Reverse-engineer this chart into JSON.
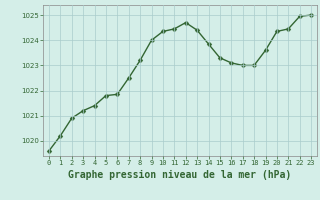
{
  "x": [
    0,
    1,
    2,
    3,
    4,
    5,
    6,
    7,
    8,
    9,
    10,
    11,
    12,
    13,
    14,
    15,
    16,
    17,
    18,
    19,
    20,
    21,
    22,
    23
  ],
  "y": [
    1019.6,
    1020.2,
    1020.9,
    1021.2,
    1021.4,
    1021.8,
    1021.85,
    1022.5,
    1023.2,
    1024.0,
    1024.35,
    1024.45,
    1024.7,
    1024.4,
    1023.85,
    1023.3,
    1023.1,
    1023.0,
    1023.0,
    1023.6,
    1024.35,
    1024.45,
    1024.95,
    1025.0
  ],
  "line_color": "#336633",
  "marker_color": "#336633",
  "bg_color": "#d4eee8",
  "grid_color": "#aacccc",
  "ylim": [
    1019.4,
    1025.4
  ],
  "yticks": [
    1020,
    1021,
    1022,
    1023,
    1024,
    1025
  ],
  "xticks": [
    0,
    1,
    2,
    3,
    4,
    5,
    6,
    7,
    8,
    9,
    10,
    11,
    12,
    13,
    14,
    15,
    16,
    17,
    18,
    19,
    20,
    21,
    22,
    23
  ],
  "xlabel": "Graphe pression niveau de la mer (hPa)",
  "xlabel_color": "#336633",
  "tick_fontsize": 5.0,
  "label_fontsize": 7.0,
  "marker_size": 2.5,
  "line_width": 1.0
}
